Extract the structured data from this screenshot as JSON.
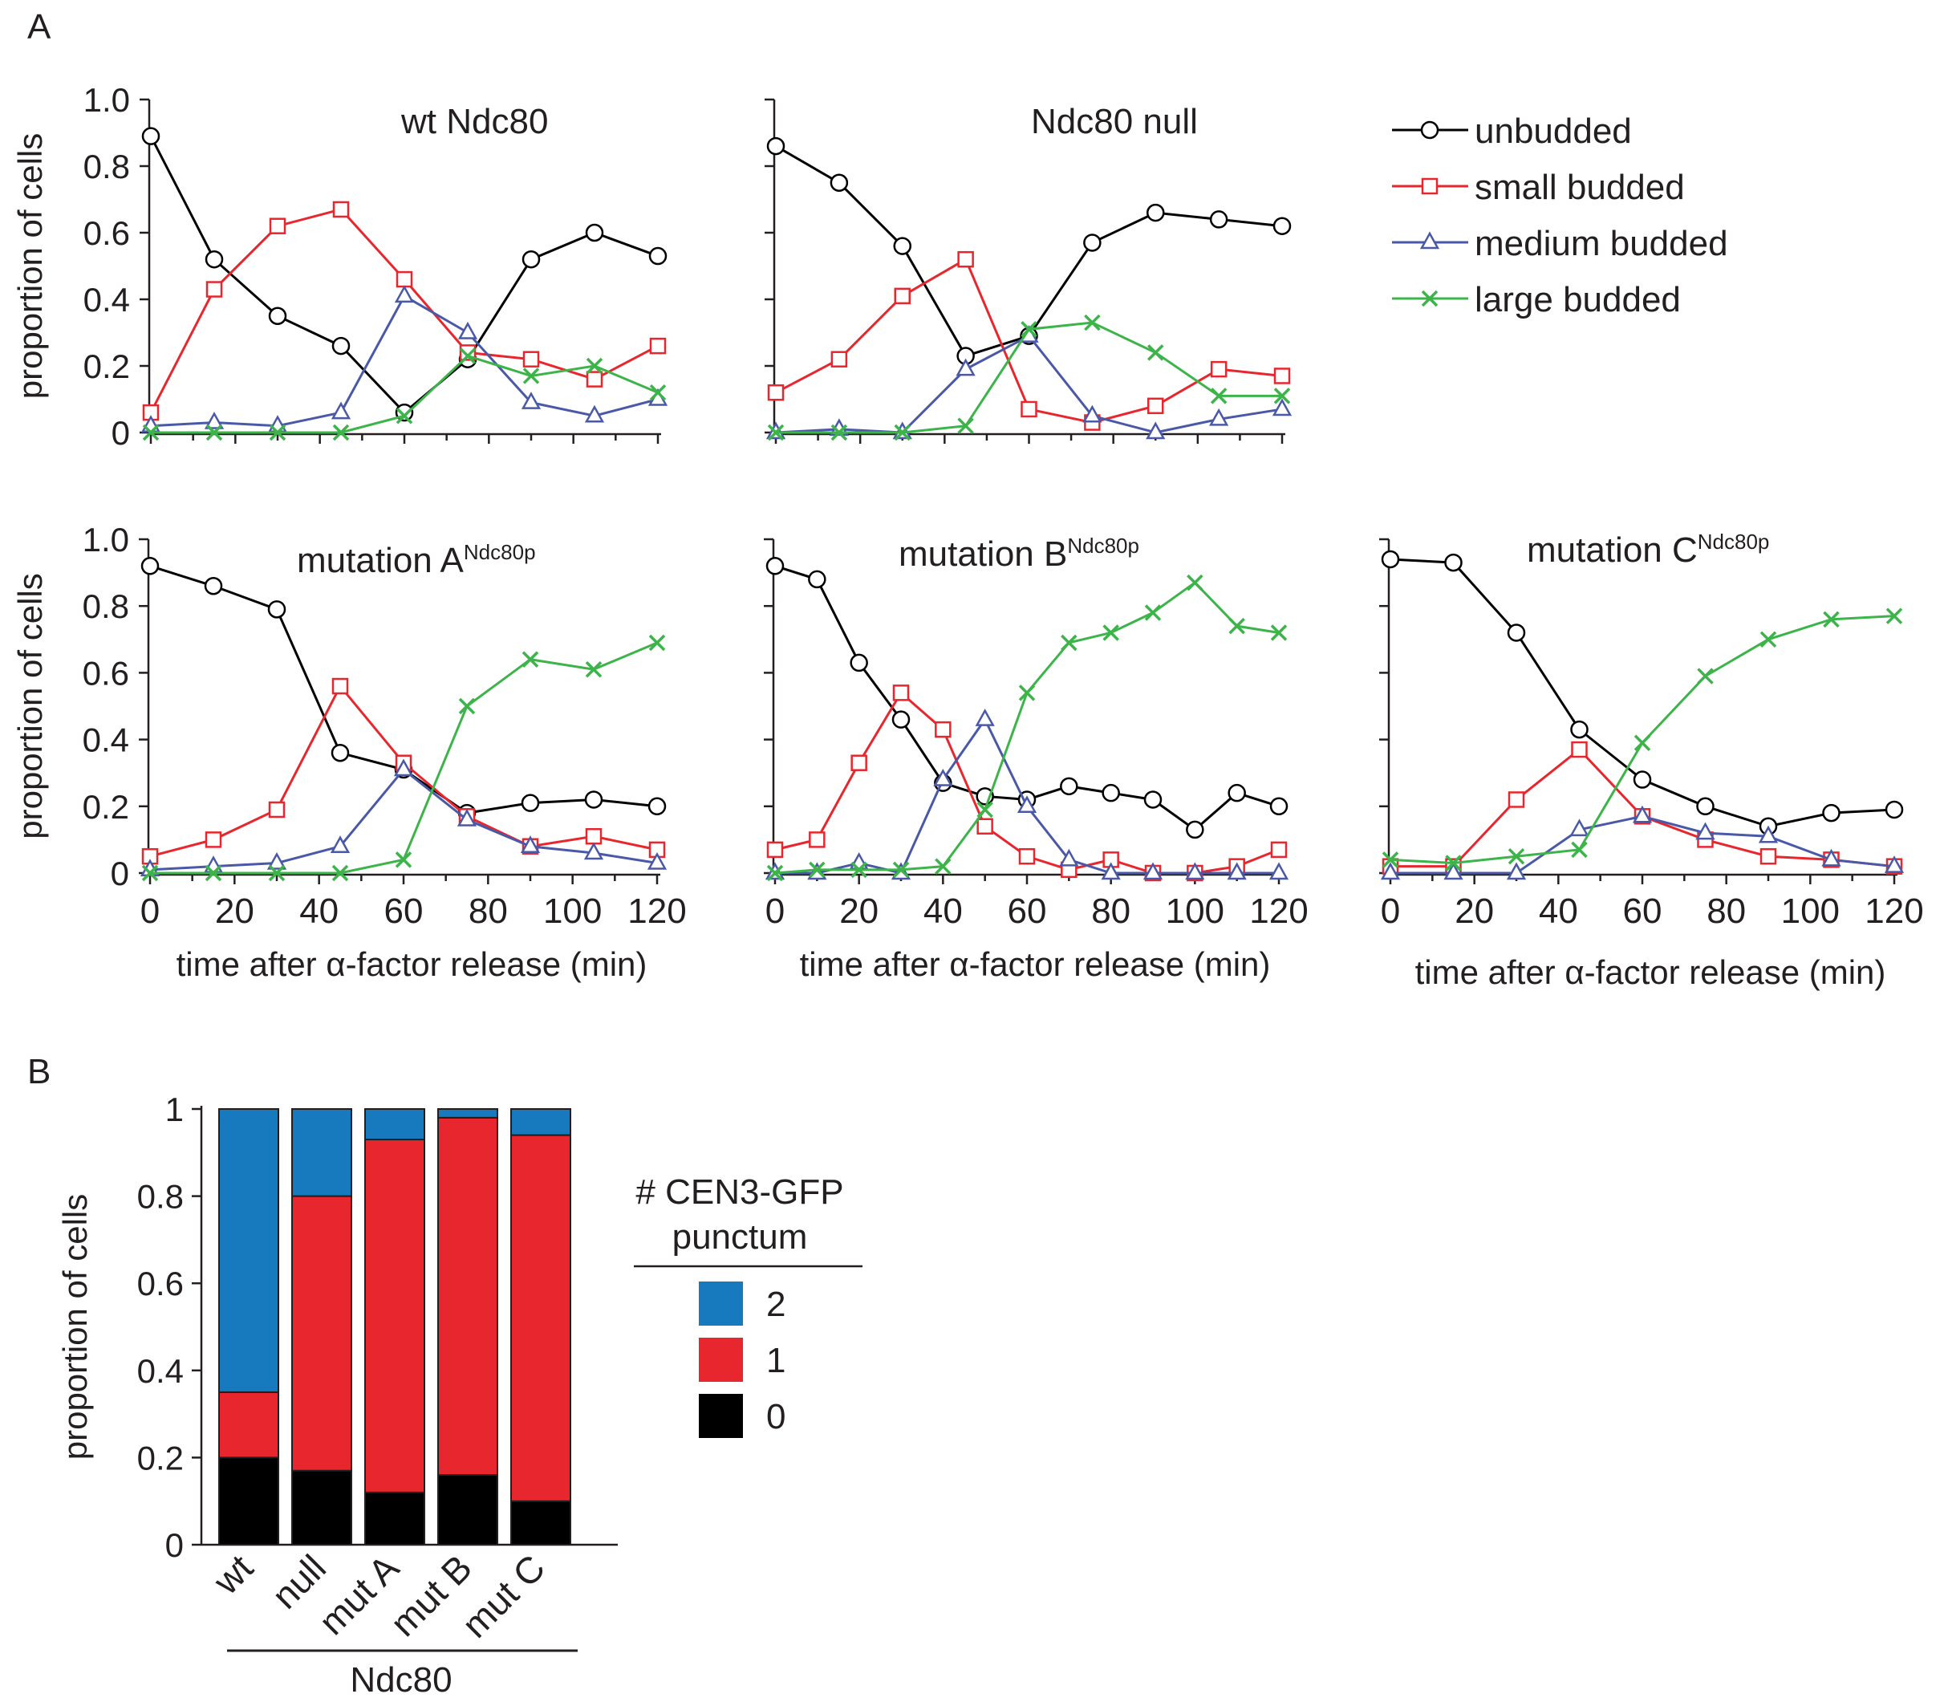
{
  "panels": {
    "a_label": "A",
    "b_label": "B"
  },
  "legend_a": [
    {
      "key": "unbudded",
      "label": "unbudded",
      "color": "#000000",
      "marker": "circle"
    },
    {
      "key": "small",
      "label": "small budded",
      "color": "#e8262d",
      "marker": "square"
    },
    {
      "key": "medium",
      "label": "medium budded",
      "color": "#4a59a7",
      "marker": "triangle"
    },
    {
      "key": "large",
      "label": "large budded",
      "color": "#3cb44a",
      "marker": "x"
    }
  ],
  "chart_data": [
    {
      "type": "line",
      "title": "wt Ndc80",
      "ylabel": "proportion of cells",
      "xlabel": "",
      "ylim": [
        0,
        1.0
      ],
      "yticks": [
        "0",
        "0.2",
        "0.4",
        "0.6",
        "0.8",
        "1.0"
      ],
      "xticks": [],
      "xlim": [
        0,
        120
      ],
      "x": [
        0,
        15,
        30,
        45,
        60,
        75,
        90,
        105,
        120
      ],
      "series": [
        {
          "key": "unbudded",
          "name": "unbudded",
          "values": [
            0.89,
            0.52,
            0.35,
            0.26,
            0.06,
            0.22,
            0.52,
            0.6,
            0.53
          ]
        },
        {
          "key": "small",
          "name": "small budded",
          "values": [
            0.06,
            0.43,
            0.62,
            0.67,
            0.46,
            0.24,
            0.22,
            0.16,
            0.26
          ]
        },
        {
          "key": "medium",
          "name": "medium budded",
          "values": [
            0.02,
            0.03,
            0.02,
            0.06,
            0.41,
            0.3,
            0.09,
            0.05,
            0.1
          ]
        },
        {
          "key": "large",
          "name": "large budded",
          "values": [
            0.0,
            0.0,
            0.0,
            0.0,
            0.05,
            0.23,
            0.17,
            0.2,
            0.12
          ]
        }
      ]
    },
    {
      "type": "line",
      "title": "Ndc80 null",
      "ylabel": "",
      "xlabel": "",
      "ylim": [
        0,
        1.0
      ],
      "yticks": [],
      "xticks": [],
      "xlim": [
        0,
        120
      ],
      "x": [
        0,
        15,
        30,
        45,
        60,
        75,
        90,
        105,
        120
      ],
      "series": [
        {
          "key": "unbudded",
          "name": "unbudded",
          "values": [
            0.86,
            0.75,
            0.56,
            0.23,
            0.29,
            0.57,
            0.66,
            0.64,
            0.62
          ]
        },
        {
          "key": "small",
          "name": "small budded",
          "values": [
            0.12,
            0.22,
            0.41,
            0.52,
            0.07,
            0.03,
            0.08,
            0.19,
            0.17
          ]
        },
        {
          "key": "medium",
          "name": "medium budded",
          "values": [
            0.0,
            0.01,
            0.0,
            0.19,
            0.29,
            0.05,
            0.0,
            0.04,
            0.07
          ]
        },
        {
          "key": "large",
          "name": "large budded",
          "values": [
            0.0,
            0.0,
            0.0,
            0.02,
            0.31,
            0.33,
            0.24,
            0.11,
            0.11
          ]
        }
      ]
    },
    {
      "type": "line",
      "title": "mutation A",
      "title_sup": "Ndc80p",
      "ylabel": "proportion of cells",
      "xlabel": "time after α-factor release (min)",
      "ylim": [
        0,
        1.0
      ],
      "yticks": [
        "0",
        "0.2",
        "0.4",
        "0.6",
        "0.8",
        "1.0"
      ],
      "xticks": [
        "0",
        "20",
        "40",
        "60",
        "80",
        "100",
        "120"
      ],
      "xlim": [
        0,
        120
      ],
      "x": [
        0,
        15,
        30,
        45,
        60,
        75,
        90,
        105,
        120
      ],
      "series": [
        {
          "key": "unbudded",
          "name": "unbudded",
          "values": [
            0.92,
            0.86,
            0.79,
            0.36,
            0.31,
            0.18,
            0.21,
            0.22,
            0.2
          ]
        },
        {
          "key": "small",
          "name": "small budded",
          "values": [
            0.05,
            0.1,
            0.19,
            0.56,
            0.33,
            0.17,
            0.08,
            0.11,
            0.07
          ]
        },
        {
          "key": "medium",
          "name": "medium budded",
          "values": [
            0.01,
            0.02,
            0.03,
            0.08,
            0.31,
            0.16,
            0.08,
            0.06,
            0.03
          ]
        },
        {
          "key": "large",
          "name": "large budded",
          "values": [
            0.0,
            0.0,
            0.0,
            0.0,
            0.04,
            0.5,
            0.64,
            0.61,
            0.69
          ]
        }
      ]
    },
    {
      "type": "line",
      "title": "mutation B",
      "title_sup": "Ndc80p",
      "ylabel": "",
      "xlabel": "time after α-factor release (min)",
      "ylim": [
        0,
        1.0
      ],
      "yticks": [],
      "xticks": [
        "0",
        "20",
        "40",
        "60",
        "80",
        "100",
        "120"
      ],
      "xlim": [
        0,
        120
      ],
      "x": [
        0,
        10,
        20,
        30,
        40,
        50,
        60,
        70,
        80,
        90,
        100,
        110,
        120
      ],
      "series": [
        {
          "key": "unbudded",
          "name": "unbudded",
          "values": [
            0.92,
            0.88,
            0.63,
            0.46,
            0.27,
            0.23,
            0.22,
            0.26,
            0.24,
            0.22,
            0.13,
            0.24,
            0.2
          ]
        },
        {
          "key": "small",
          "name": "small budded",
          "values": [
            0.07,
            0.1,
            0.33,
            0.54,
            0.43,
            0.14,
            0.05,
            0.01,
            0.04,
            0.0,
            0.0,
            0.02,
            0.07
          ]
        },
        {
          "key": "medium",
          "name": "medium budded",
          "values": [
            0.0,
            0.0,
            0.03,
            0.0,
            0.28,
            0.46,
            0.2,
            0.04,
            0.0,
            0.0,
            0.0,
            0.0,
            0.0
          ]
        },
        {
          "key": "large",
          "name": "large budded",
          "values": [
            0.0,
            0.01,
            0.01,
            0.01,
            0.02,
            0.19,
            0.54,
            0.69,
            0.72,
            0.78,
            0.87,
            0.74,
            0.72
          ]
        }
      ]
    },
    {
      "type": "line",
      "title": "mutation C",
      "title_sup": "Ndc80p",
      "ylabel": "",
      "xlabel": "time after α-factor release (min)",
      "ylim": [
        0,
        1.0
      ],
      "yticks": [],
      "xticks": [
        "0",
        "20",
        "40",
        "60",
        "80",
        "100",
        "120"
      ],
      "xlim": [
        0,
        120
      ],
      "x": [
        0,
        15,
        30,
        45,
        60,
        75,
        90,
        105,
        120
      ],
      "series": [
        {
          "key": "unbudded",
          "name": "unbudded",
          "values": [
            0.94,
            0.93,
            0.72,
            0.43,
            0.28,
            0.2,
            0.14,
            0.18,
            0.19
          ]
        },
        {
          "key": "small",
          "name": "small budded",
          "values": [
            0.02,
            0.02,
            0.22,
            0.37,
            0.17,
            0.1,
            0.05,
            0.04,
            0.02
          ]
        },
        {
          "key": "medium",
          "name": "medium budded",
          "values": [
            0.0,
            0.0,
            0.0,
            0.13,
            0.17,
            0.12,
            0.11,
            0.04,
            0.02
          ]
        },
        {
          "key": "large",
          "name": "large budded",
          "values": [
            0.04,
            0.03,
            0.05,
            0.07,
            0.39,
            0.59,
            0.7,
            0.76,
            0.77
          ]
        }
      ]
    },
    {
      "type": "bar",
      "stacked": true,
      "ylabel": "proportion of cells",
      "xlabel": "Ndc80",
      "ylim": [
        0,
        1
      ],
      "yticks": [
        "0",
        "0.2",
        "0.4",
        "0.6",
        "0.8",
        "1"
      ],
      "categories": [
        "wt",
        "null",
        "mut A",
        "mut B",
        "mut C"
      ],
      "legend_title": [
        "# CEN3-GFP",
        "punctum"
      ],
      "series": [
        {
          "name": "0",
          "color": "#000000",
          "values": [
            0.2,
            0.17,
            0.12,
            0.16,
            0.1
          ]
        },
        {
          "name": "1",
          "color": "#e8262d",
          "values": [
            0.15,
            0.63,
            0.81,
            0.82,
            0.84
          ]
        },
        {
          "name": "2",
          "color": "#1779be",
          "values": [
            0.65,
            0.2,
            0.07,
            0.02,
            0.06
          ]
        }
      ],
      "legend_order": [
        "2",
        "1",
        "0"
      ]
    }
  ]
}
